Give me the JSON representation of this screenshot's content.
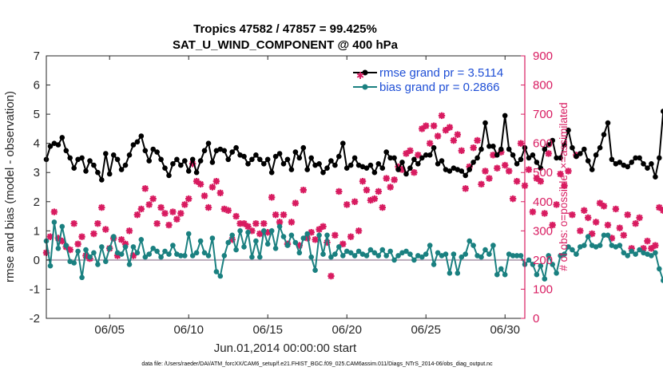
{
  "chart_data": {
    "type": "line",
    "title": "Tropics 47582 / 47857 = 99.425%",
    "subtitle": "SAT_U_WIND_COMPONENT @ 400 hPa",
    "xlabel": "Jun.01,2014 00:00:00 start",
    "ylabel": "rmse and bias (model - observation)",
    "ylabel_right": "# of obs: o=possible; ×=assimilated",
    "footer": "data file: /Users/raeder/DAI/ATM_forcXX/CAM6_setup/f.e21.FHIST_BGC.f09_025.CAM6assim.011/Diags_NTrS_2014-06/obs_diag_output.nc",
    "xlim": [
      1.0,
      31.25
    ],
    "ylim": [
      -2,
      7
    ],
    "ylim_right": [
      0,
      900
    ],
    "x_ticks": [
      5,
      10,
      15,
      20,
      25,
      30
    ],
    "x_tick_labels": [
      "06/05",
      "06/10",
      "06/15",
      "06/20",
      "06/25",
      "06/30"
    ],
    "y_ticks": [
      -2,
      -1,
      0,
      1,
      2,
      3,
      4,
      5,
      6,
      7
    ],
    "y_tick_labels": [
      "-2",
      "-1",
      "0",
      "1",
      "2",
      "3",
      "4",
      "5",
      "6",
      "7"
    ],
    "y_ticks_right": [
      0,
      100,
      200,
      300,
      400,
      500,
      600,
      700,
      800,
      900
    ],
    "y_tick_labels_right": [
      "0",
      "100",
      "200",
      "300",
      "400",
      "500",
      "600",
      "700",
      "800",
      "900"
    ],
    "zero_line": 0,
    "colors": {
      "rmse": "#000000",
      "bias": "#1a8080",
      "obs": "#d81b60",
      "zero": "#b9a9b9",
      "legend_text": "#1f4fd6"
    },
    "series": [
      {
        "name": "rmse grand pr = 3.5114",
        "axis": "left",
        "x0": 1.0,
        "dx": 0.25,
        "values": [
          3.45,
          3.9,
          4.0,
          3.95,
          4.2,
          3.75,
          3.5,
          3.15,
          3.45,
          3.5,
          3.05,
          3.4,
          3.25,
          3.0,
          2.75,
          3.65,
          2.95,
          3.6,
          3.45,
          3.1,
          3.25,
          3.6,
          3.95,
          4.05,
          4.25,
          3.75,
          3.4,
          3.8,
          3.7,
          3.45,
          3.15,
          2.9,
          3.3,
          3.45,
          3.25,
          3.4,
          3.05,
          3.45,
          3.0,
          3.4,
          3.75,
          4.0,
          3.35,
          3.75,
          3.8,
          3.75,
          3.45,
          3.7,
          3.85,
          3.6,
          3.55,
          3.3,
          3.45,
          3.6,
          3.45,
          3.3,
          3.45,
          3.0,
          3.55,
          3.65,
          3.3,
          3.45,
          3.1,
          3.7,
          3.5,
          3.85,
          3.1,
          3.5,
          3.25,
          3.3,
          3.0,
          3.15,
          3.4,
          3.25,
          3.55,
          4.0,
          3.15,
          3.25,
          3.5,
          3.25,
          3.2,
          3.15,
          3.25,
          3.0,
          3.3,
          3.15,
          3.7,
          3.5,
          3.5,
          3.1,
          3.35,
          2.95,
          3.15,
          3.45,
          3.3,
          3.5,
          3.6,
          3.6,
          3.85,
          3.3,
          3.4,
          3.1,
          3.05,
          3.15,
          3.1,
          3.05,
          2.9,
          3.1,
          3.35,
          3.5,
          3.8,
          4.7,
          3.9,
          3.9,
          3.6,
          3.8,
          4.95,
          3.8,
          3.6,
          3.3,
          3.45,
          3.85,
          3.5,
          3.6,
          3.35,
          3.15,
          3.8,
          3.95,
          4.1,
          3.5,
          3.5,
          3.95,
          4.45,
          3.85,
          3.55,
          3.65,
          3.8,
          3.4,
          3.1,
          3.6,
          3.85,
          4.3,
          4.7,
          3.45,
          3.3,
          3.35,
          3.25,
          3.2,
          3.35,
          3.5,
          3.5,
          3.3,
          3.15,
          3.3,
          2.85,
          3.5,
          5.1,
          4.0,
          3.55
        ]
      },
      {
        "name": "bias grand pr = 0.2866",
        "axis": "left",
        "x0": 1.0,
        "dx": 0.25,
        "values": [
          0.65,
          -0.2,
          1.3,
          0.4,
          1.15,
          0.5,
          -0.05,
          -0.1,
          0.3,
          -0.6,
          0.35,
          0.1,
          0.25,
          -0.15,
          0.45,
          -0.05,
          0.4,
          0.8,
          0.25,
          0.2,
          0.45,
          -0.15,
          0.45,
          0.25,
          0.7,
          0.1,
          0.2,
          0.4,
          0.3,
          0.1,
          0.3,
          0.2,
          0.5,
          0.2,
          0.15,
          0.15,
          0.9,
          0.15,
          0.25,
          0.65,
          0.25,
          0.15,
          0.75,
          -0.4,
          -0.55,
          0.15,
          0.6,
          0.85,
          0.35,
          1.0,
          0.45,
          0.95,
          0.1,
          0.65,
          0.1,
          1.0,
          0.55,
          1.0,
          0.4,
          1.15,
          0.8,
          0.5,
          0.85,
          0.6,
          0.25,
          0.75,
          0.9,
          0.1,
          -0.35,
          0.85,
          0.2,
          0.85,
          0.1,
          0.2,
          0.45,
          0.15,
          0.3,
          0.25,
          0.15,
          0.3,
          0.2,
          0.15,
          0.35,
          0.25,
          0.15,
          0.35,
          0.15,
          0.3,
          0.0,
          0.15,
          0.25,
          0.3,
          0.2,
          0.0,
          0.15,
          0.1,
          0.2,
          0.5,
          -0.15,
          0.25,
          0.15,
          0.2,
          -0.45,
          0.2,
          -0.45,
          0.1,
          0.2,
          0.65,
          0.5,
          0.15,
          0.1,
          0.35,
          0.2,
          0.5,
          -0.5,
          -0.3,
          -0.5,
          0.2,
          0.15,
          0.15,
          0.15,
          -0.15,
          0.0,
          -0.15,
          -0.5,
          -0.2,
          -0.65,
          0.15,
          -0.15,
          -0.45,
          0.15,
          0.2,
          0.45,
          0.35,
          0.2,
          0.45,
          0.5,
          0.8,
          0.5,
          0.45,
          0.5,
          0.85,
          0.85,
          0.5,
          0.45,
          0.5,
          0.25,
          0.15,
          0.3,
          0.2,
          0.35,
          0.25,
          0.2,
          0.15,
          0.25,
          -0.3,
          -0.7,
          0.15,
          0.15
        ]
      },
      {
        "name": "# obs possible/assimilated",
        "axis": "right",
        "x0": 1.0,
        "dx": 0.25,
        "values": [
          225,
          280,
          365,
          275,
          265,
          245,
          235,
          325,
          255,
          280,
          215,
          205,
          290,
          325,
          380,
          305,
          240,
          275,
          215,
          270,
          255,
          300,
          215,
          355,
          375,
          445,
          390,
          410,
          325,
          380,
          360,
          320,
          365,
          340,
          360,
          390,
          410,
          530,
          470,
          460,
          420,
          380,
          450,
          470,
          430,
          375,
          370,
          270,
          350,
          325,
          325,
          315,
          300,
          325,
          290,
          325,
          295,
          415,
          355,
          330,
          355,
          255,
          330,
          395,
          250,
          440,
          275,
          295,
          270,
          305,
          315,
          260,
          145,
          285,
          435,
          255,
          390,
          280,
          400,
          300,
          470,
          440,
          405,
          410,
          435,
          380,
          480,
          450,
          475,
          520,
          510,
          565,
          575,
          500,
          560,
          650,
          660,
          600,
          660,
          625,
          695,
          645,
          655,
          610,
          630,
          575,
          445,
          520,
          585,
          610,
          460,
          505,
          480,
          560,
          515,
          570,
          525,
          505,
          410,
          470,
          600,
          455,
          510,
          365,
          480,
          470,
          360,
          565,
          320,
          390,
          495,
          455,
          505,
          355,
          560,
          300,
          370,
          345,
          290,
          330,
          395,
          385,
          320,
          275,
          375,
          310,
          285,
          355,
          240,
          325,
          345,
          240,
          265,
          240,
          250,
          380,
          370,
          380,
          275,
          490,
          255,
          240,
          0
        ]
      }
    ]
  }
}
